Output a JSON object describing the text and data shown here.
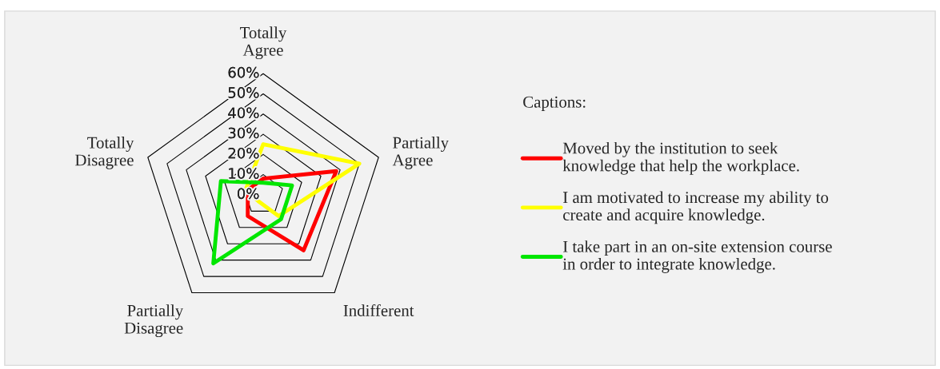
{
  "chart_data": {
    "type": "radar",
    "categories": [
      "Totally\nAgree",
      "Partially\nAgree",
      "Indifferent",
      "Partially\nDisagree",
      "Totally\nDisagree"
    ],
    "series": [
      {
        "name": "Moved by the institution to seek\nknowledge that help the workplace.",
        "color": "#ff0000",
        "values": [
          8,
          38,
          34,
          13,
          8
        ]
      },
      {
        "name": "I am motivated to increase my ability to\ncreate and acquire knowledge.",
        "color": "#ffff00",
        "values": [
          25,
          50,
          13,
          4,
          9
        ]
      },
      {
        "name": "I take part in an on-site extension course\nin order to integrate knowledge.",
        "color": "#00e600",
        "values": [
          6,
          15,
          15,
          42,
          22
        ]
      }
    ],
    "ylim": [
      0,
      60
    ],
    "yticks": [
      {
        "value": 0,
        "label": "0%"
      },
      {
        "value": 10,
        "label": "10%"
      },
      {
        "value": 20,
        "label": "20%"
      },
      {
        "value": 30,
        "label": "30%"
      },
      {
        "value": 40,
        "label": "40%"
      },
      {
        "value": 50,
        "label": "50%"
      },
      {
        "value": 60,
        "label": "60%"
      }
    ],
    "legend_title": "Captions:",
    "legend": "right",
    "grid": true
  }
}
